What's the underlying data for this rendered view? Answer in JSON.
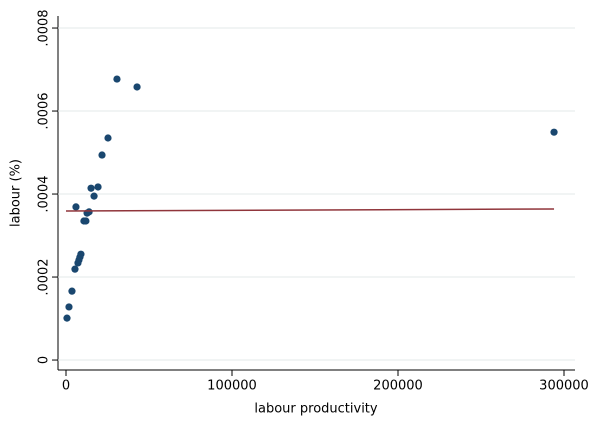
{
  "chart_data": {
    "type": "scatter",
    "x_label": "labour productivity",
    "y_label": "labour  (%)",
    "xlim": [
      -4819,
      306627
    ],
    "ylim": [
      -2.4e-05,
      0.000829
    ],
    "xticks": [
      0,
      100000,
      200000,
      300000
    ],
    "yticks": [
      0,
      {
        "value": 0.0002,
        "label": ".0002"
      },
      {
        "value": 0.0004,
        "label": ".0004"
      },
      {
        "value": 0.0006,
        "label": ".0006"
      },
      {
        "value": 0.0008,
        "label": ".0008"
      }
    ],
    "grid": true,
    "series": [
      {
        "type": "scatter",
        "color": "#1a476f",
        "x": [
          600,
          1800,
          3600,
          5400,
          6000,
          7200,
          7800,
          8400,
          9000,
          10800,
          12000,
          12700,
          13900,
          15100,
          16900,
          19300,
          21700,
          25300,
          30700,
          42800,
          294000
        ],
        "values": [
          0.000101,
          0.000128,
          0.000166,
          0.000219,
          0.000369,
          0.000234,
          0.000241,
          0.000248,
          0.000255,
          0.000335,
          0.000335,
          0.000354,
          0.000357,
          0.000414,
          0.000395,
          0.000417,
          0.000494,
          0.000535,
          0.000677,
          0.000658,
          0.000549
        ]
      },
      {
        "type": "line",
        "color": "#90353b",
        "x": [
          0,
          294000
        ],
        "values": [
          0.000359,
          0.000364
        ]
      }
    ]
  }
}
